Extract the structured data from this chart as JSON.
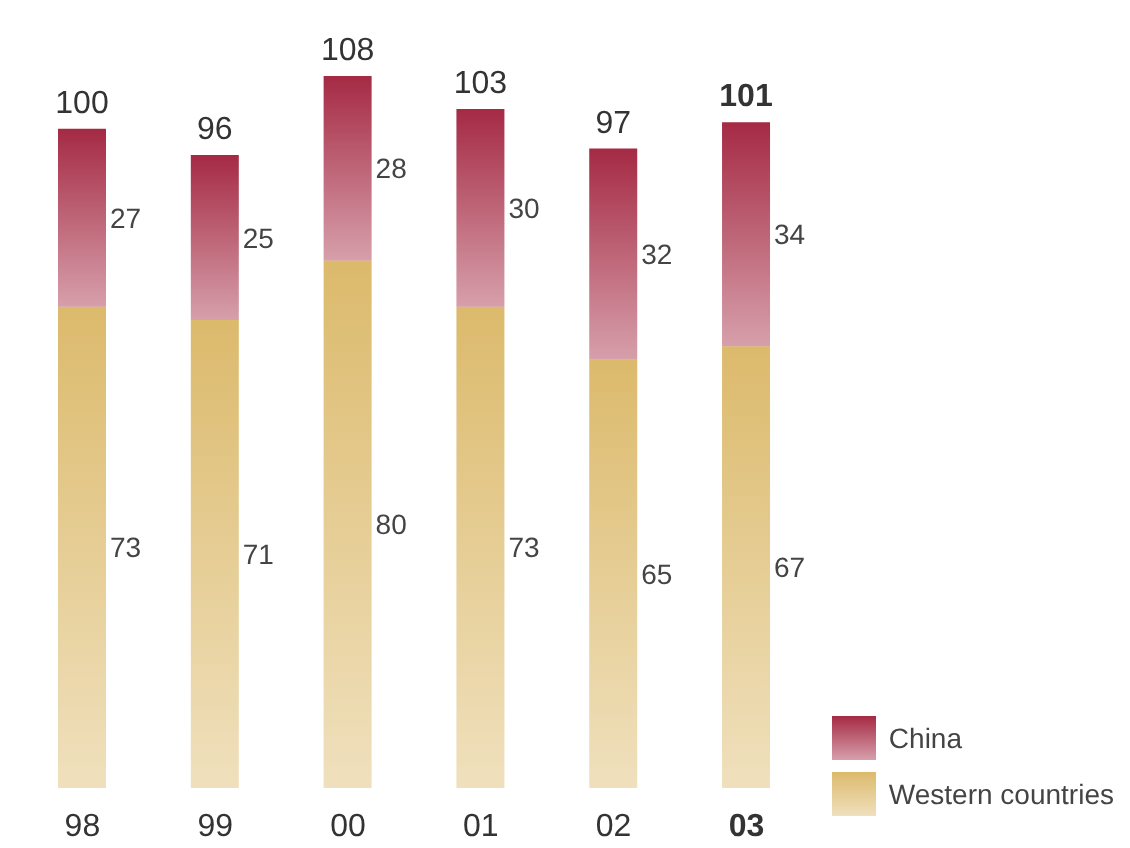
{
  "chart_data": {
    "type": "bar",
    "stacked": true,
    "categories": [
      "98",
      "99",
      "00",
      "01",
      "02",
      "03"
    ],
    "series": [
      {
        "name": "Western countries",
        "color": "#dcba6c",
        "values": [
          73,
          71,
          80,
          73,
          65,
          67
        ]
      },
      {
        "name": "China",
        "color": "#a52a44",
        "values": [
          27,
          25,
          28,
          30,
          32,
          34
        ]
      }
    ],
    "data_labels": true,
    "totals": [
      "100",
      "96",
      "108",
      "103",
      "97",
      "101"
    ],
    "legend": "bottom right",
    "grid": false
  }
}
